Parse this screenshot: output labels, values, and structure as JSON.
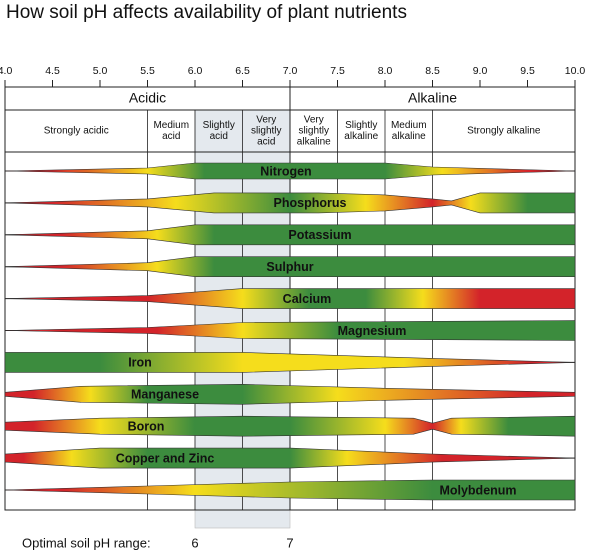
{
  "chart_data": {
    "type": "band",
    "title": "How soil pH affects availability of plant nutrients",
    "xlim": [
      4,
      10
    ],
    "xticks": [
      {
        "value": 4,
        "label": "4.0"
      },
      {
        "value": 4.5,
        "label": "4.5"
      },
      {
        "value": 5,
        "label": "5.0"
      },
      {
        "value": 5.5,
        "label": "5.5"
      },
      {
        "value": 6,
        "label": "6.0"
      },
      {
        "value": 6.5,
        "label": "6.5"
      },
      {
        "value": 7,
        "label": "7.0"
      },
      {
        "value": 7.5,
        "label": "7.5"
      },
      {
        "value": 8,
        "label": "8.0"
      },
      {
        "value": 8.5,
        "label": "8.5"
      },
      {
        "value": 9,
        "label": "9.0"
      },
      {
        "value": 9.5,
        "label": "9.5"
      },
      {
        "value": 10,
        "label": "10.0"
      }
    ],
    "groups": [
      {
        "label": "Acidic",
        "from": 4,
        "to": 7
      },
      {
        "label": "Alkaline",
        "from": 7,
        "to": 10
      }
    ],
    "zones": [
      {
        "label": [
          "Strongly acidic"
        ],
        "from": 4,
        "to": 5.5
      },
      {
        "label": [
          "Medium",
          "acid"
        ],
        "from": 5.5,
        "to": 6
      },
      {
        "label": [
          "Slightly",
          "acid"
        ],
        "from": 6,
        "to": 6.5
      },
      {
        "label": [
          "Very",
          "slightly",
          "acid"
        ],
        "from": 6.5,
        "to": 7
      },
      {
        "label": [
          "Very",
          "slightly",
          "alkaline"
        ],
        "from": 7,
        "to": 7.5
      },
      {
        "label": [
          "Slightly",
          "alkaline"
        ],
        "from": 7.5,
        "to": 8
      },
      {
        "label": [
          "Medium",
          "alkaline"
        ],
        "from": 8,
        "to": 8.5
      },
      {
        "label": [
          "Strongly alkaline"
        ],
        "from": 8.5,
        "to": 10
      }
    ],
    "nutrients": [
      "Nitrogen",
      "Phosphorus",
      "Potassium",
      "Sulphur",
      "Calcium",
      "Magnesium",
      "Iron",
      "Manganese",
      "Boron",
      "Copper and Zinc",
      "Molybdenum"
    ],
    "optimal": {
      "label": "Optimal soil pH range:",
      "range": [
        6,
        7
      ]
    }
  }
}
